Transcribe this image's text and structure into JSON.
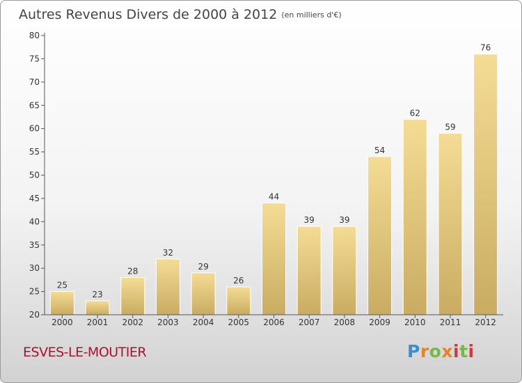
{
  "title": "Autres Revenus Divers de 2000 à 2012",
  "subtitle": "(en milliers d'€)",
  "commune": "ESVES-LE-MOUTIER",
  "logo": {
    "letters": [
      "P",
      "r",
      "o",
      "x",
      "i",
      "t",
      "i"
    ],
    "colors": [
      "#3a8fd0",
      "#e8822a",
      "#7ab648",
      "#e8822a",
      "#d23a3a",
      "#7ab648",
      "#d23a3a"
    ]
  },
  "colors": {
    "bar_top": "#f5dc94",
    "bar_bottom": "#c9ac62",
    "axis": "#555555",
    "grid": "#c8c8c8",
    "title": "#444444",
    "commune": "#b01030"
  },
  "chart_data": {
    "type": "bar",
    "categories": [
      "2000",
      "2001",
      "2002",
      "2003",
      "2004",
      "2005",
      "2006",
      "2007",
      "2008",
      "2009",
      "2010",
      "2011",
      "2012"
    ],
    "values": [
      25,
      23,
      28,
      32,
      29,
      26,
      44,
      39,
      39,
      54,
      62,
      59,
      76
    ],
    "title": "Autres Revenus Divers de 2000 à 2012",
    "subtitle": "(en milliers d'€)",
    "xlabel": "",
    "ylabel": "",
    "ylim": [
      20,
      80
    ],
    "yticks": [
      20,
      25,
      30,
      35,
      40,
      45,
      50,
      55,
      60,
      65,
      70,
      75,
      80
    ],
    "grid": false,
    "data_labels": true
  }
}
